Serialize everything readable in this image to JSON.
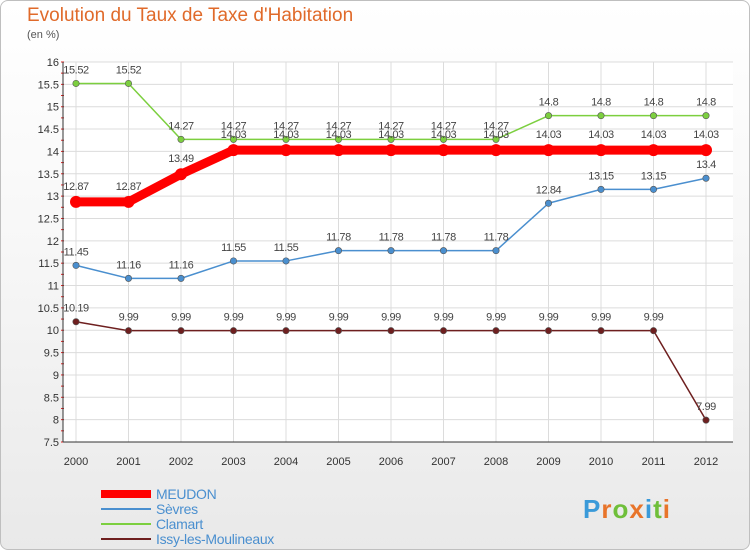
{
  "chart_data": {
    "type": "line",
    "title": "Evolution du Taux de Taxe d'Habitation",
    "subtitle": "(en %)",
    "x": [
      "2000",
      "2001",
      "2002",
      "2003",
      "2004",
      "2005",
      "2006",
      "2007",
      "2008",
      "2009",
      "2010",
      "2011",
      "2012"
    ],
    "y_ticks": [
      "7.5",
      "8",
      "8.5",
      "9",
      "9.5",
      "10",
      "10.5",
      "11",
      "11.5",
      "12",
      "12.5",
      "13",
      "13.5",
      "14",
      "14.5",
      "15",
      "15.5",
      "16"
    ],
    "ylim": [
      7.5,
      16
    ],
    "grid": true,
    "legend_position": "bottom-left",
    "series": [
      {
        "name": "MEUDON",
        "color": "#ff0000",
        "values": [
          12.87,
          12.87,
          13.49,
          14.03,
          14.03,
          14.03,
          14.03,
          14.03,
          14.03,
          14.03,
          14.03,
          14.03,
          14.03
        ],
        "labels": [
          "12.87",
          "12.87",
          "13.49",
          "14.03",
          "14.03",
          "14.03",
          "14.03",
          "14.03",
          "14.03",
          "14.03",
          "14.03",
          "14.03",
          "14.03"
        ]
      },
      {
        "name": "Sèvres",
        "color": "#4a8fcf",
        "values": [
          11.45,
          11.16,
          11.16,
          11.55,
          11.55,
          11.78,
          11.78,
          11.78,
          11.78,
          12.84,
          13.15,
          13.15,
          13.4
        ],
        "labels": [
          "11.45",
          "11.16",
          "11.16",
          "11.55",
          "11.55",
          "11.78",
          "11.78",
          "11.78",
          "11.78",
          "12.84",
          "13.15",
          "13.15",
          "13.4"
        ]
      },
      {
        "name": "Clamart",
        "color": "#7ccf3f",
        "values": [
          15.52,
          15.52,
          14.27,
          14.27,
          14.27,
          14.27,
          14.27,
          14.27,
          14.27,
          14.8,
          14.8,
          14.8,
          14.8
        ],
        "labels": [
          "15.52",
          "15.52",
          "14.27",
          "14.27",
          "14.27",
          "14.27",
          "14.27",
          "14.27",
          "14.27",
          "14.8",
          "14.8",
          "14.8",
          "14.8"
        ]
      },
      {
        "name": "Issy-les-Moulineaux",
        "color": "#6e1f1f",
        "values": [
          10.19,
          9.99,
          9.99,
          9.99,
          9.99,
          9.99,
          9.99,
          9.99,
          9.99,
          9.99,
          9.99,
          9.99,
          7.99
        ],
        "labels": [
          "10.19",
          "9.99",
          "9.99",
          "9.99",
          "9.99",
          "9.99",
          "9.99",
          "9.99",
          "9.99",
          "9.99",
          "9.99",
          "9.99",
          "7.99"
        ]
      }
    ]
  },
  "logo": {
    "text": "Prox iti",
    "letters": [
      "P",
      "r",
      "o",
      "x",
      "i",
      "t",
      "i"
    ],
    "colors": [
      "#3a9ad9",
      "#e8742a",
      "#6fbf3a",
      "#e8742a",
      "#3a9ad9",
      "#6fbf3a",
      "#e8742a"
    ]
  }
}
